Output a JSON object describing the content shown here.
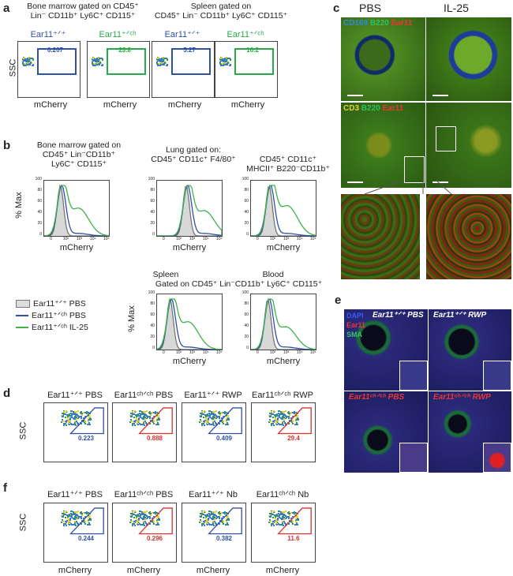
{
  "panel_a": {
    "label": "a",
    "headers": [
      {
        "l1": "Bone marrow gated on CD45⁺",
        "l2": "Lin⁻ CD11b⁺ Ly6C⁺ CD115⁺"
      },
      {
        "l1": "Spleen gated on",
        "l2": "CD45⁺ Lin⁻ CD11b⁺ Ly6C⁺ CD115⁺"
      }
    ],
    "plots": [
      {
        "genotype": "Ear11⁺ᐟ⁺",
        "gate": "0.207",
        "color": "#2f4fa8"
      },
      {
        "genotype": "Ear11⁺ᐟᶜʰ",
        "gate": "23.8",
        "color": "#2aa84a"
      },
      {
        "genotype": "Ear11⁺ᐟ⁺",
        "gate": "5.27",
        "color": "#2f4fa8"
      },
      {
        "genotype": "Ear11⁺ᐟᶜʰ",
        "gate": "16.2",
        "color": "#2aa84a"
      }
    ],
    "ylabel": "SSC",
    "xlabel": "mCherry"
  },
  "panel_b": {
    "label": "b",
    "headers": [
      {
        "l1": "Bone marrow gated on",
        "l2": "CD45⁺ Lin⁻CD11b⁺",
        "l3": "Ly6C⁺ CD115⁺"
      },
      {
        "l1": "Lung gated on:",
        "l2": "CD45⁺ CD11c⁺ F4/80⁺",
        "l3": ""
      },
      {
        "l1": "CD45⁺ CD11c⁺",
        "l2": "MHCII⁺ B220⁻CD11b⁺",
        "l3": ""
      },
      {
        "l1": "Spleen",
        "l2": "Gated on CD45⁺ Lin⁻CD11b⁺ Ly6C⁺ CD115⁺",
        "l3": ""
      },
      {
        "l1": "Blood",
        "l2": "",
        "l3": ""
      }
    ],
    "ylabel": "% Max",
    "xlabel": "mCherry",
    "yticks": [
      "100",
      "80",
      "60",
      "40",
      "20",
      "0"
    ],
    "xticks": [
      "0",
      "10²",
      "10³",
      "10⁴",
      "10⁵"
    ],
    "legend": [
      {
        "label": "Ear11⁺ᐟ⁺ PBS",
        "color": "#9a9a9a"
      },
      {
        "label": "Ear11⁺ᐟᶜʰ PBS",
        "color": "#2f4fa8"
      },
      {
        "label": "Ear11⁺ᐟᶜʰ IL-25",
        "color": "#3db34a"
      }
    ]
  },
  "panel_c": {
    "label": "c",
    "col1": "PBS",
    "col2": "IL-25",
    "row1_stain": {
      "a": "CD169",
      "b": "B220",
      "c": "Ear11"
    },
    "row2_stain": {
      "a": "CD3",
      "b": "B220",
      "c": "Ear11"
    }
  },
  "panel_d": {
    "label": "d",
    "plots": [
      {
        "title": "Ear11⁺ᐟ⁺ PBS",
        "gate": "0.223",
        "color": "#2f4fa8"
      },
      {
        "title": "Ear11ᶜʰᐟᶜʰ PBS",
        "gate": "0.888",
        "color": "#d8322f"
      },
      {
        "title": "Ear11⁺ᐟ⁺ RWP",
        "gate": "0.409",
        "color": "#2f4fa8"
      },
      {
        "title": "Ear11ᶜʰᐟᶜʰ RWP",
        "gate": "29.4",
        "color": "#d8322f"
      }
    ],
    "ylabel": "SSC"
  },
  "panel_e": {
    "label": "e",
    "stains": [
      "DAPI",
      "Ear11",
      "SMA"
    ],
    "titles": [
      "Ear11⁺ᐟ⁺ PBS",
      "Ear11⁺ᐟ⁺ RWP",
      "Ear11ᶜʰᐟᶜʰ PBS",
      "Ear11ᶜʰᐟᶜʰ RWP"
    ]
  },
  "panel_f": {
    "label": "f",
    "plots": [
      {
        "title": "Ear11⁺ᐟ⁺ PBS",
        "gate": "0.244",
        "color": "#2f4fa8"
      },
      {
        "title": "Ear11ᶜʰᐟᶜʰ PBS",
        "gate": "0.296",
        "color": "#d8322f"
      },
      {
        "title": "Ear11⁺ᐟ⁺ Nb",
        "gate": "0.382",
        "color": "#2f4fa8"
      },
      {
        "title": "Ear11ᶜʰᐟᶜʰ Nb",
        "gate": "11.6",
        "color": "#d8322f"
      }
    ],
    "ylabel": "SSC",
    "xlabel": "mCherry"
  }
}
